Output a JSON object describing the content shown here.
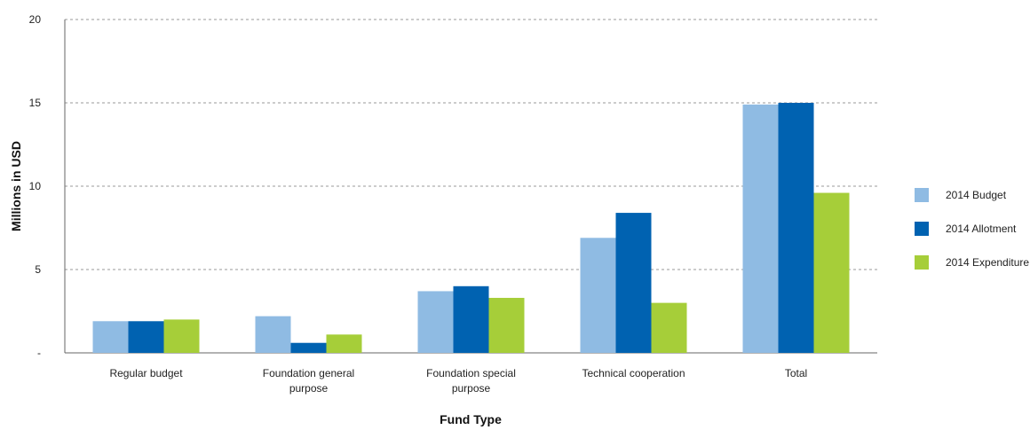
{
  "chart_data": {
    "type": "bar",
    "title": "",
    "xlabel": "Fund Type",
    "ylabel": "Millions  in USD",
    "ylim": [
      0,
      20
    ],
    "y_ticks": [
      {
        "value": 0,
        "label": "-"
      },
      {
        "value": 5,
        "label": "5"
      },
      {
        "value": 10,
        "label": "10"
      },
      {
        "value": 15,
        "label": "15"
      },
      {
        "value": 20,
        "label": "20"
      }
    ],
    "grid": true,
    "legend_position": "right",
    "categories": [
      [
        "Regular budget"
      ],
      [
        "Foundation general",
        "purpose"
      ],
      [
        "Foundation special",
        "purpose"
      ],
      [
        "Technical cooperation"
      ],
      [
        "Total"
      ]
    ],
    "series": [
      {
        "name": "2014 Budget",
        "color": "#8fbbe3",
        "values": [
          1.9,
          2.2,
          3.7,
          6.9,
          14.9
        ]
      },
      {
        "name": "2014 Allotment",
        "color": "#0062b1",
        "values": [
          1.9,
          0.6,
          4.0,
          8.4,
          15.0
        ]
      },
      {
        "name": "2014 Expenditure",
        "color": "#a6ce39",
        "values": [
          2.0,
          1.1,
          3.3,
          3.0,
          9.6
        ]
      }
    ]
  }
}
